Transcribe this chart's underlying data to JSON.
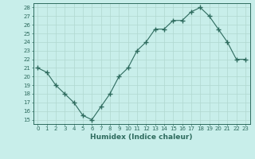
{
  "x": [
    0,
    1,
    2,
    3,
    4,
    5,
    6,
    7,
    8,
    9,
    10,
    11,
    12,
    13,
    14,
    15,
    16,
    17,
    18,
    19,
    20,
    21,
    22,
    23
  ],
  "y": [
    21,
    20.5,
    19,
    18,
    17,
    15.5,
    15,
    16.5,
    18,
    20,
    21,
    23,
    24,
    25.5,
    25.5,
    26.5,
    26.5,
    27.5,
    28,
    27,
    25.5,
    24,
    22,
    22
  ],
  "title": "",
  "xlabel": "Humidex (Indice chaleur)",
  "ylabel": "",
  "xlim": [
    -0.5,
    23.5
  ],
  "ylim": [
    14.5,
    28.5
  ],
  "yticks": [
    15,
    16,
    17,
    18,
    19,
    20,
    21,
    22,
    23,
    24,
    25,
    26,
    27,
    28
  ],
  "xtick_labels": [
    "0",
    "1",
    "2",
    "3",
    "4",
    "5",
    "6",
    "7",
    "8",
    "9",
    "10",
    "11",
    "12",
    "13",
    "14",
    "15",
    "16",
    "17",
    "18",
    "19",
    "20",
    "21",
    "22",
    "23"
  ],
  "line_color": "#2e6b5e",
  "marker_color": "#2e6b5e",
  "bg_color": "#c8eeea",
  "grid_color": "#b0d8d0",
  "label_color": "#2e6b5e",
  "tick_color": "#2e6b5e",
  "spine_color": "#2e6b5e"
}
